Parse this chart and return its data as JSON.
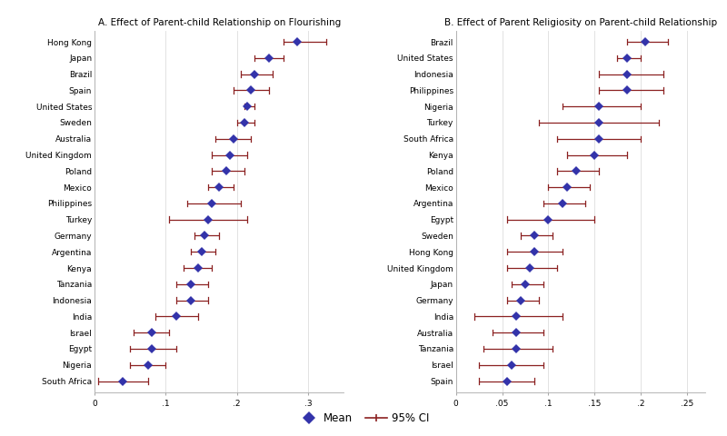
{
  "panel_a": {
    "title": "A. Effect of Parent-child Relationship on Flourishing",
    "countries": [
      "Hong Kong",
      "Japan",
      "Brazil",
      "Spain",
      "United States",
      "Sweden",
      "Australia",
      "United Kingdom",
      "Poland",
      "Mexico",
      "Philippines",
      "Turkey",
      "Germany",
      "Argentina",
      "Kenya",
      "Tanzania",
      "Indonesia",
      "India",
      "Israel",
      "Egypt",
      "Nigeria",
      "South Africa"
    ],
    "means": [
      0.285,
      0.245,
      0.225,
      0.22,
      0.215,
      0.21,
      0.195,
      0.19,
      0.185,
      0.175,
      0.165,
      0.16,
      0.155,
      0.15,
      0.145,
      0.135,
      0.135,
      0.115,
      0.08,
      0.08,
      0.075,
      0.04
    ],
    "ci_lo": [
      0.265,
      0.225,
      0.205,
      0.195,
      0.21,
      0.2,
      0.17,
      0.165,
      0.165,
      0.16,
      0.13,
      0.105,
      0.14,
      0.135,
      0.125,
      0.115,
      0.115,
      0.085,
      0.055,
      0.05,
      0.05,
      0.005
    ],
    "ci_hi": [
      0.325,
      0.265,
      0.25,
      0.245,
      0.225,
      0.225,
      0.22,
      0.215,
      0.21,
      0.195,
      0.205,
      0.215,
      0.175,
      0.17,
      0.165,
      0.16,
      0.16,
      0.145,
      0.105,
      0.115,
      0.1,
      0.075
    ],
    "xlim": [
      0,
      0.35
    ],
    "xticks": [
      0,
      0.1,
      0.2,
      0.3
    ],
    "xticklabels": [
      "0",
      ".1",
      ".2",
      ".3"
    ]
  },
  "panel_b": {
    "title": "B. Effect of Parent Religiosity on Parent-child Relationship",
    "countries": [
      "Brazil",
      "United States",
      "Indonesia",
      "Philippines",
      "Nigeria",
      "Turkey",
      "South Africa",
      "Kenya",
      "Poland",
      "Mexico",
      "Argentina",
      "Egypt",
      "Sweden",
      "Hong Kong",
      "United Kingdom",
      "Japan",
      "Germany",
      "India",
      "Australia",
      "Tanzania",
      "Israel",
      "Spain"
    ],
    "means": [
      0.205,
      0.185,
      0.185,
      0.185,
      0.155,
      0.155,
      0.155,
      0.15,
      0.13,
      0.12,
      0.115,
      0.1,
      0.085,
      0.085,
      0.08,
      0.075,
      0.07,
      0.065,
      0.065,
      0.065,
      0.06,
      0.055
    ],
    "ci_lo": [
      0.185,
      0.175,
      0.155,
      0.155,
      0.115,
      0.09,
      0.11,
      0.12,
      0.11,
      0.1,
      0.095,
      0.055,
      0.07,
      0.055,
      0.055,
      0.06,
      0.055,
      0.02,
      0.04,
      0.03,
      0.025,
      0.025
    ],
    "ci_hi": [
      0.23,
      0.2,
      0.225,
      0.225,
      0.2,
      0.22,
      0.2,
      0.185,
      0.155,
      0.145,
      0.14,
      0.15,
      0.105,
      0.115,
      0.11,
      0.095,
      0.09,
      0.115,
      0.095,
      0.105,
      0.095,
      0.085
    ],
    "xlim": [
      0,
      0.27
    ],
    "xticks": [
      0,
      0.05,
      0.1,
      0.15,
      0.2,
      0.25
    ],
    "xticklabels": [
      "0",
      ".05",
      ".1",
      ".15",
      ".2",
      ".25"
    ]
  },
  "diamond_color": "#3333aa",
  "ci_color": "#8b2020",
  "bg_color": "#ffffff",
  "diamond_size": 5,
  "ci_linewidth": 0.9,
  "fontsize_title": 7.5,
  "fontsize_tick": 6.5,
  "fontsize_country": 6.5,
  "fontsize_legend": 8.5
}
